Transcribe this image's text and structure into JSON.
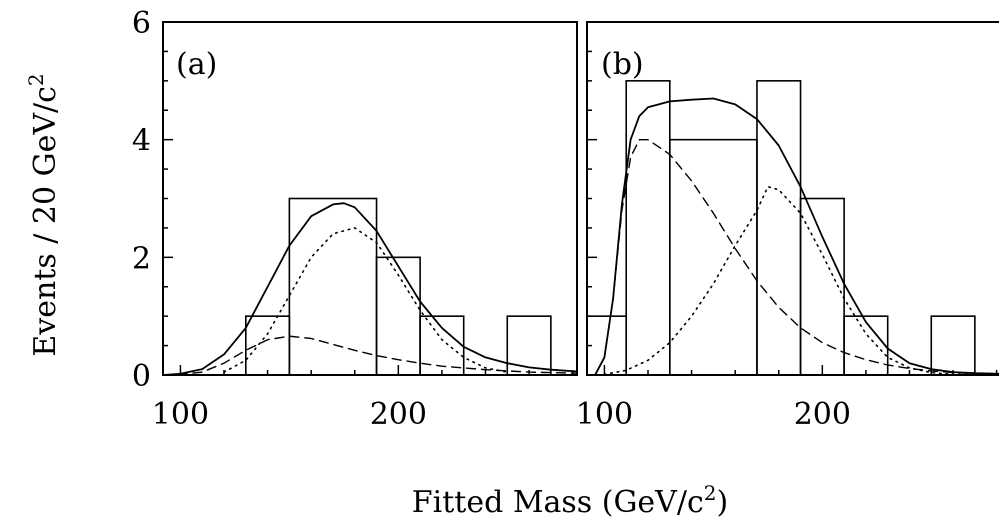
{
  "figure": {
    "ylabel_main": "Events / 20 GeV/c",
    "ylabel_sup": "2",
    "xlabel_main": "Fitted Mass (GeV/c",
    "xlabel_sup": "2",
    "xlabel_end": ")"
  },
  "chart_data": [
    {
      "type": "bar",
      "panel_label": "(a)",
      "xlabel": "Fitted Mass (GeV/c²)",
      "ylabel": "Events / 20 GeV/c²",
      "xlim": [
        92,
        282
      ],
      "ylim": [
        0,
        6
      ],
      "x_ticks": [
        100,
        200
      ],
      "y_ticks": [
        0,
        2,
        4,
        6
      ],
      "histogram": {
        "bin_edges": [
          130,
          150,
          190,
          210,
          230,
          250,
          270
        ],
        "counts": [
          1,
          3,
          2,
          1,
          0,
          1
        ]
      },
      "series": [
        {
          "style": "solid",
          "x": [
            92,
            100,
            110,
            120,
            130,
            140,
            150,
            160,
            170,
            175,
            180,
            190,
            200,
            210,
            220,
            230,
            240,
            250,
            260,
            270,
            282
          ],
          "y": [
            0,
            0.02,
            0.1,
            0.35,
            0.8,
            1.5,
            2.2,
            2.7,
            2.9,
            2.92,
            2.85,
            2.45,
            1.85,
            1.25,
            0.8,
            0.48,
            0.3,
            0.2,
            0.13,
            0.09,
            0.06
          ]
        },
        {
          "style": "dotted",
          "x": [
            120,
            130,
            140,
            150,
            160,
            170,
            180,
            190,
            200,
            210,
            220,
            230,
            240,
            250
          ],
          "y": [
            0.05,
            0.25,
            0.7,
            1.35,
            2.0,
            2.4,
            2.5,
            2.25,
            1.7,
            1.1,
            0.6,
            0.3,
            0.12,
            0.05
          ]
        },
        {
          "style": "dashed",
          "x": [
            92,
            100,
            110,
            120,
            130,
            140,
            150,
            160,
            170,
            180,
            190,
            200,
            210,
            220,
            230,
            240,
            250,
            260,
            270,
            282
          ],
          "y": [
            0,
            0.01,
            0.05,
            0.2,
            0.42,
            0.6,
            0.66,
            0.62,
            0.52,
            0.42,
            0.33,
            0.26,
            0.2,
            0.15,
            0.12,
            0.09,
            0.07,
            0.05,
            0.04,
            0.03
          ]
        }
      ]
    },
    {
      "type": "bar",
      "panel_label": "(b)",
      "xlabel": "Fitted Mass (GeV/c²)",
      "ylabel": "Events / 20 GeV/c²",
      "xlim": [
        92,
        282
      ],
      "ylim": [
        0,
        6
      ],
      "x_ticks": [
        100,
        200
      ],
      "y_ticks": [
        0,
        2,
        4,
        6
      ],
      "histogram": {
        "bin_edges": [
          92,
          110,
          130,
          170,
          190,
          210,
          230,
          250,
          270
        ],
        "counts": [
          1,
          5,
          4,
          5,
          3,
          1,
          0,
          1
        ]
      },
      "series": [
        {
          "style": "solid",
          "x": [
            96,
            100,
            104,
            108,
            112,
            116,
            120,
            130,
            140,
            150,
            160,
            170,
            180,
            190,
            200,
            210,
            220,
            230,
            240,
            250,
            260,
            270,
            282
          ],
          "y": [
            0.02,
            0.3,
            1.3,
            2.9,
            4.0,
            4.4,
            4.55,
            4.65,
            4.68,
            4.7,
            4.6,
            4.35,
            3.9,
            3.2,
            2.35,
            1.55,
            0.9,
            0.45,
            0.2,
            0.1,
            0.05,
            0.03,
            0.02
          ]
        },
        {
          "style": "dashed",
          "x": [
            96,
            100,
            104,
            108,
            112,
            116,
            120,
            130,
            140,
            150,
            160,
            170,
            180,
            190,
            200,
            210,
            220,
            230,
            240,
            250,
            260,
            282
          ],
          "y": [
            0.02,
            0.3,
            1.3,
            2.8,
            3.7,
            4.0,
            4.0,
            3.75,
            3.3,
            2.75,
            2.15,
            1.6,
            1.15,
            0.8,
            0.55,
            0.38,
            0.26,
            0.17,
            0.11,
            0.07,
            0.04,
            0.01
          ]
        },
        {
          "style": "dotted",
          "x": [
            100,
            110,
            120,
            130,
            140,
            150,
            160,
            170,
            175,
            180,
            190,
            200,
            210,
            220,
            230,
            240,
            250,
            260,
            282
          ],
          "y": [
            0.01,
            0.08,
            0.25,
            0.55,
            1.0,
            1.55,
            2.2,
            2.8,
            3.2,
            3.15,
            2.75,
            2.05,
            1.3,
            0.7,
            0.3,
            0.12,
            0.04,
            0.01,
            0
          ]
        }
      ]
    }
  ]
}
